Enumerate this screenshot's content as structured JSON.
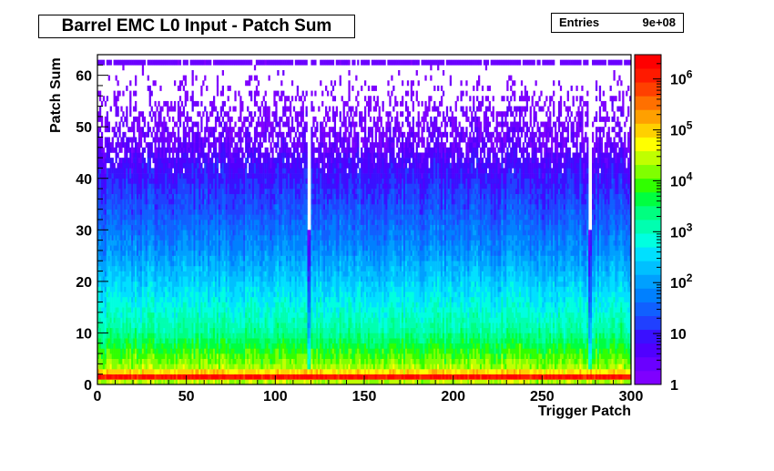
{
  "chart_data": {
    "type": "heatmap",
    "title": "Barrel EMC L0 Input - Patch Sum",
    "xlabel": "Trigger Patch",
    "ylabel": "Patch Sum",
    "xlim": [
      0,
      300
    ],
    "ylim": [
      0,
      64
    ],
    "x_ticks": [
      0,
      50,
      100,
      150,
      200,
      250,
      300
    ],
    "y_ticks": [
      0,
      10,
      20,
      30,
      40,
      50,
      60
    ],
    "z_scale": "log",
    "z_range": [
      1,
      3000000
    ],
    "z_tick_labels": [
      {
        "value": 1,
        "label": "1"
      },
      {
        "value": 10,
        "label": "10"
      },
      {
        "value": 100,
        "label": "10^2"
      },
      {
        "value": 1000,
        "label": "10^3"
      },
      {
        "value": 10000,
        "label": "10^4"
      },
      {
        "value": 100000,
        "label": "10^5"
      },
      {
        "value": 1000000,
        "label": "10^6"
      }
    ],
    "stats": {
      "label": "Entries",
      "value": "9e+08"
    },
    "palette": [
      "#7f00ff",
      "#6a00ff",
      "#5000ff",
      "#3a10ff",
      "#2040ff",
      "#1060ff",
      "#0080ff",
      "#00a0ff",
      "#00c0ff",
      "#00e0ff",
      "#00ffe0",
      "#00ffb0",
      "#00ff80",
      "#00ff40",
      "#30ff00",
      "#80ff00",
      "#c0ff00",
      "#ffff00",
      "#ffd000",
      "#ffa000",
      "#ff7000",
      "#ff4000",
      "#ff1a00",
      "#ff0000"
    ]
  }
}
